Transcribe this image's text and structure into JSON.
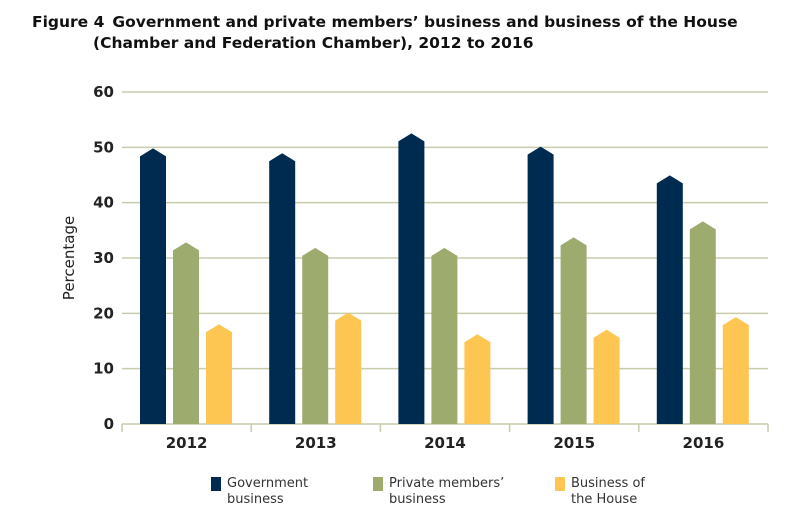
{
  "chart_data": {
    "type": "bar",
    "title": "Government and private members’ business and business of the House (Chamber and Federation Chamber), 2012 to 2016",
    "figure_label": "Figure 4",
    "title_line1": "Government and private members’ business and business of the House",
    "title_line2": "(Chamber and Federation Chamber), 2012 to 2016",
    "xlabel": "",
    "ylabel": "Percentage",
    "ylim": [
      0,
      60
    ],
    "yticks": [
      "0",
      "10",
      "20",
      "30",
      "40",
      "50",
      "60"
    ],
    "grid": true,
    "legend_position": "bottom",
    "categories": [
      "2012",
      "2013",
      "2014",
      "2015",
      "2016"
    ],
    "series": [
      {
        "name": "Government business",
        "legend_lines": [
          "Government",
          "business"
        ],
        "color": "#002b50",
        "values": [
          49.1,
          48.2,
          51.8,
          49.4,
          44.2
        ]
      },
      {
        "name": "Private members’ business",
        "legend_lines": [
          "Private members’",
          "business"
        ],
        "color": "#9eab6f",
        "values": [
          32.1,
          31.1,
          31.1,
          33.0,
          35.9
        ]
      },
      {
        "name": "Business of the House",
        "legend_lines": [
          "Business of",
          "the House"
        ],
        "color": "#fdc551",
        "values": [
          17.3,
          19.4,
          15.5,
          16.3,
          18.6
        ]
      }
    ]
  }
}
